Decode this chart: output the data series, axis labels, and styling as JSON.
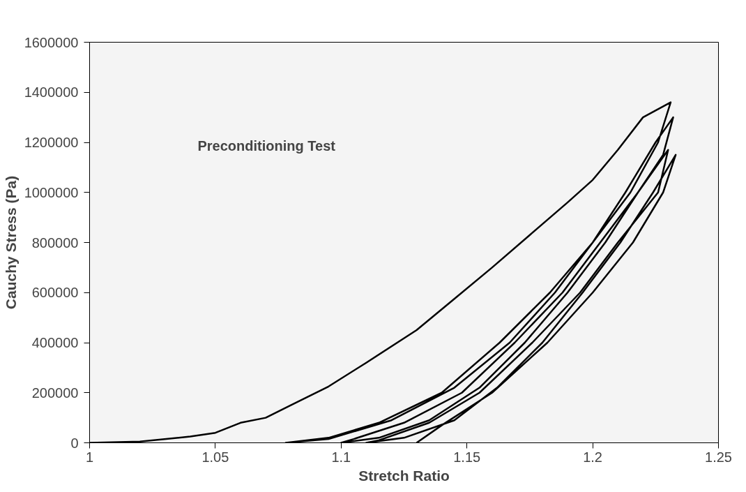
{
  "chart_data": {
    "type": "line",
    "xlabel": "Stretch Ratio",
    "ylabel": "Cauchy Stress (Pa)",
    "annotations": [
      "Preconditioning Test"
    ],
    "xlim": [
      1,
      1.25
    ],
    "xticks": [
      1,
      1.05,
      1.1,
      1.15,
      1.2,
      1.25
    ],
    "ylim": [
      0,
      1600000
    ],
    "yticks": [
      0,
      200000,
      400000,
      600000,
      800000,
      1000000,
      1200000,
      1400000,
      1600000
    ],
    "grid": false,
    "marker": "none",
    "line_style": "solid",
    "series": [
      {
        "color": "#000000",
        "x": [
          1,
          1.02,
          1.04,
          1.05,
          1.06,
          1.07,
          1.08,
          1.095,
          1.11,
          1.13,
          1.145,
          1.16,
          1.175,
          1.19,
          1.2,
          1.21,
          1.22,
          1.231,
          1.226,
          1.215,
          1.2,
          1.183,
          1.163,
          1.14,
          1.115,
          1.095,
          1.078,
          1.095,
          1.12,
          1.145,
          1.167,
          1.185,
          1.2,
          1.213,
          1.225,
          1.232,
          1.228,
          1.218,
          1.203,
          1.188,
          1.169,
          1.148,
          1.125,
          1.105,
          1.1,
          1.115,
          1.135,
          1.155,
          1.173,
          1.19,
          1.205,
          1.218,
          1.23,
          1.226,
          1.21,
          1.195,
          1.176,
          1.155,
          1.135,
          1.115,
          1.11,
          1.125,
          1.145,
          1.162,
          1.18,
          1.196,
          1.211,
          1.224,
          1.233,
          1.228,
          1.216,
          1.2,
          1.182,
          1.16,
          1.14,
          1.13
        ],
        "values": [
          0,
          5000,
          25000,
          40000,
          80000,
          100000,
          150000,
          225000,
          320000,
          450000,
          575000,
          700000,
          830000,
          960000,
          1050000,
          1170000,
          1300000,
          1360000,
          1200000,
          1000000,
          800000,
          600000,
          400000,
          200000,
          80000,
          20000,
          0,
          15000,
          90000,
          220000,
          400000,
          600000,
          800000,
          1000000,
          1200000,
          1300000,
          1150000,
          1000000,
          800000,
          600000,
          400000,
          200000,
          80000,
          15000,
          0,
          20000,
          90000,
          220000,
          400000,
          600000,
          800000,
          1000000,
          1170000,
          1000000,
          800000,
          600000,
          400000,
          200000,
          80000,
          10000,
          0,
          20000,
          90000,
          220000,
          400000,
          600000,
          800000,
          1000000,
          1150000,
          1000000,
          800000,
          600000,
          400000,
          200000,
          70000,
          0
        ]
      }
    ]
  }
}
